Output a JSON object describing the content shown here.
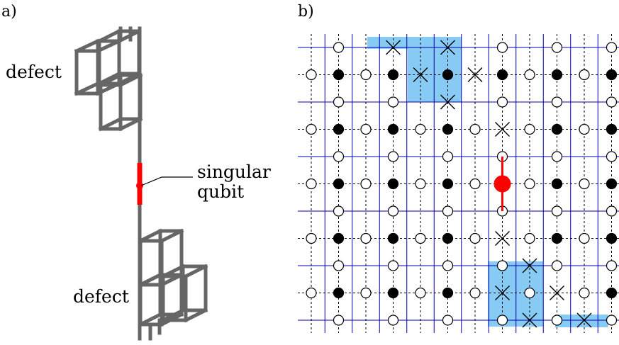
{
  "panel_a": {
    "tag": "a)",
    "defect_top_label": "defect",
    "defect_bottom_label": "defect",
    "singular_line1": "singular",
    "singular_line2": "qubit"
  },
  "panel_b": {
    "tag": "b)",
    "rows": 11,
    "cols": 12,
    "filled_rows": [
      1,
      3,
      5,
      7,
      9
    ],
    "filled_cols_in_row": [
      1,
      3,
      5,
      7,
      9,
      11
    ],
    "hatched_top_cells": [
      [
        0,
        3
      ],
      [
        0,
        5
      ],
      [
        1,
        4
      ],
      [
        1,
        6
      ],
      [
        2,
        5
      ],
      [
        3,
        7
      ]
    ],
    "hatched_bottom_cells": [
      [
        7,
        7
      ],
      [
        8,
        8
      ],
      [
        9,
        7
      ],
      [
        9,
        9
      ],
      [
        10,
        8
      ],
      [
        10,
        10
      ]
    ],
    "singular_cell": [
      5,
      7
    ]
  },
  "colors": {
    "lattice_primal": "#0000aa",
    "lattice_dual": "#000000",
    "defect_fill": "#87cbf5",
    "singular": "#ff0000",
    "structure": "#666666"
  }
}
